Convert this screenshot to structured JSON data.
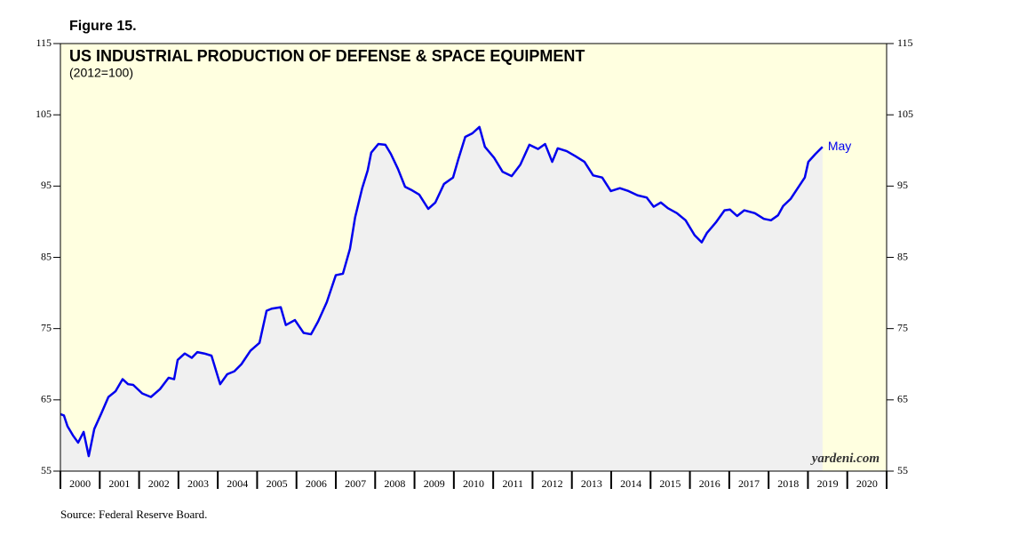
{
  "chart_data": {
    "type": "line",
    "figure_label": "Figure 15.",
    "title": "US INDUSTRIAL PRODUCTION OF DEFENSE & SPACE EQUIPMENT",
    "subtitle": "(2012=100)",
    "annotation": "May",
    "watermark": "yardeni.com",
    "source": "Source: Federal Reserve Board.",
    "x": [
      2000.0,
      2000.09,
      2000.18,
      2000.32,
      2000.45,
      2000.59,
      2000.72,
      2000.86,
      2001.04,
      2001.22,
      2001.4,
      2001.58,
      2001.72,
      2001.85,
      2002.08,
      2002.3,
      2002.53,
      2002.75,
      2002.89,
      2002.98,
      2003.16,
      2003.34,
      2003.48,
      2003.66,
      2003.84,
      2004.06,
      2004.24,
      2004.42,
      2004.6,
      2004.83,
      2005.06,
      2005.24,
      2005.37,
      2005.6,
      2005.73,
      2005.96,
      2006.18,
      2006.37,
      2006.55,
      2006.77,
      2007.0,
      2007.18,
      2007.36,
      2007.49,
      2007.67,
      2007.81,
      2007.9,
      2008.08,
      2008.26,
      2008.4,
      2008.58,
      2008.76,
      2008.94,
      2009.12,
      2009.35,
      2009.53,
      2009.75,
      2009.98,
      2010.11,
      2010.29,
      2010.47,
      2010.65,
      2010.79,
      2011.02,
      2011.24,
      2011.47,
      2011.69,
      2011.92,
      2012.14,
      2012.32,
      2012.5,
      2012.64,
      2012.87,
      2013.09,
      2013.32,
      2013.54,
      2013.77,
      2013.99,
      2014.22,
      2014.44,
      2014.67,
      2014.9,
      2015.08,
      2015.26,
      2015.44,
      2015.67,
      2015.89,
      2016.12,
      2016.3,
      2016.43,
      2016.66,
      2016.88,
      2017.02,
      2017.2,
      2017.38,
      2017.65,
      2017.88,
      2018.06,
      2018.24,
      2018.37,
      2018.56,
      2018.74,
      2018.92,
      2019.01,
      2019.19,
      2019.37
    ],
    "series": [
      {
        "name": "Defense & Space Equipment",
        "color": "#0000ee",
        "values": [
          63.0,
          62.8,
          61.3,
          60.0,
          59.0,
          60.5,
          57.1,
          60.9,
          63.1,
          65.4,
          66.2,
          67.9,
          67.2,
          67.1,
          65.9,
          65.4,
          66.5,
          68.1,
          67.9,
          70.6,
          71.5,
          70.9,
          71.7,
          71.5,
          71.2,
          67.2,
          68.6,
          69.0,
          70.0,
          71.9,
          73.0,
          77.5,
          77.8,
          78.0,
          75.5,
          76.2,
          74.4,
          74.2,
          76.0,
          78.7,
          82.5,
          82.7,
          86.2,
          90.6,
          94.7,
          97.2,
          99.7,
          100.9,
          100.8,
          99.5,
          97.4,
          94.9,
          94.4,
          93.8,
          91.8,
          92.7,
          95.3,
          96.2,
          98.7,
          101.9,
          102.4,
          103.3,
          100.5,
          99.0,
          97.0,
          96.4,
          98.0,
          100.8,
          100.2,
          100.9,
          98.4,
          100.3,
          99.9,
          99.2,
          98.4,
          96.5,
          96.2,
          94.3,
          94.7,
          94.3,
          93.7,
          93.4,
          92.1,
          92.7,
          91.9,
          91.2,
          90.2,
          88.1,
          87.1,
          88.4,
          89.9,
          91.6,
          91.7,
          90.8,
          91.6,
          91.2,
          90.4,
          90.2,
          90.9,
          92.2,
          93.2,
          94.7,
          96.2,
          98.4,
          99.5,
          100.5
        ]
      }
    ],
    "xlim": [
      2000,
      2021
    ],
    "xticks": [
      2000,
      2001,
      2002,
      2003,
      2004,
      2005,
      2006,
      2007,
      2008,
      2009,
      2010,
      2011,
      2012,
      2013,
      2014,
      2015,
      2016,
      2017,
      2018,
      2019,
      2020
    ],
    "ylim": [
      55,
      115
    ],
    "yticks": [
      55,
      65,
      75,
      85,
      95,
      105,
      115
    ],
    "background": "#ffffe0",
    "fill": "#f0f0f0"
  }
}
